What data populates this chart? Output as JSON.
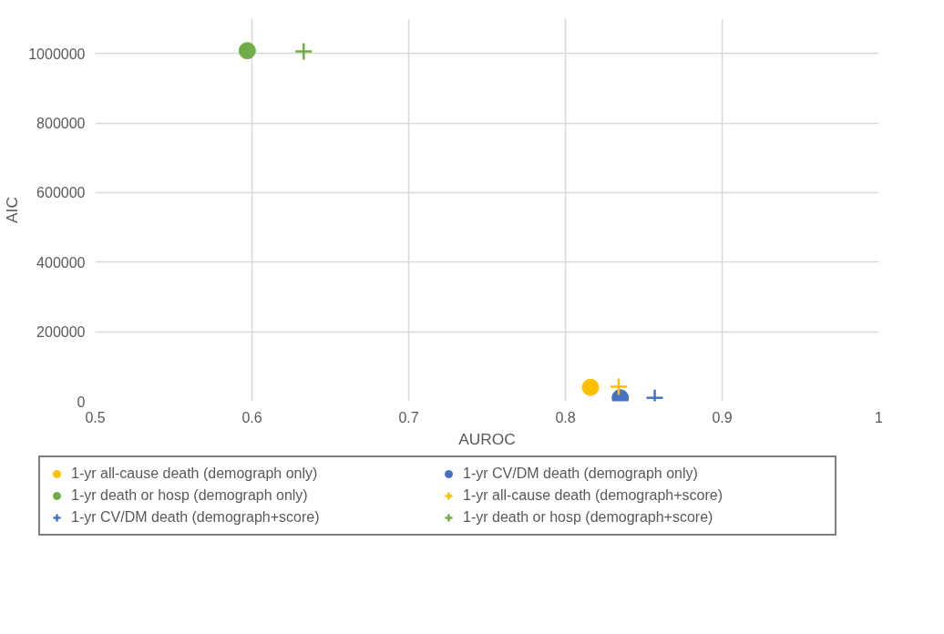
{
  "chart_data": {
    "type": "scatter",
    "xlabel": "AUROC",
    "ylabel": "AIC",
    "xlim": [
      0.5,
      1
    ],
    "xticks": [
      0.5,
      0.6,
      0.7,
      0.8,
      0.9,
      1
    ],
    "ylim": [
      0,
      1100000
    ],
    "yticks": [
      0,
      200000,
      400000,
      600000,
      800000,
      1000000
    ],
    "grid": true,
    "legend": "bottom",
    "series": [
      {
        "name": "1-yr all-cause death (demograph only)",
        "color": "#ffc000",
        "marker": "circle",
        "x": [
          0.816
        ],
        "values": [
          40000
        ]
      },
      {
        "name": "1-yr CV/DM death (demograph only)",
        "color": "#4472c4",
        "marker": "circle",
        "x": [
          0.835
        ],
        "values": [
          10000
        ]
      },
      {
        "name": "1-yr death or hosp (demograph only)",
        "color": "#70ad47",
        "marker": "circle",
        "x": [
          0.597
        ],
        "values": [
          1008000
        ]
      },
      {
        "name": "1-yr all-cause death (demograph+score)",
        "color": "#ffc000",
        "marker": "cross",
        "x": [
          0.834
        ],
        "values": [
          42000
        ]
      },
      {
        "name": "1-yr CV/DM death (demograph+score)",
        "color": "#4472c4",
        "marker": "cross",
        "x": [
          0.857
        ],
        "values": [
          10000
        ]
      },
      {
        "name": "1-yr death or hosp (demograph+score)",
        "color": "#70ad47",
        "marker": "cross",
        "x": [
          0.633
        ],
        "values": [
          1006000
        ]
      }
    ]
  }
}
